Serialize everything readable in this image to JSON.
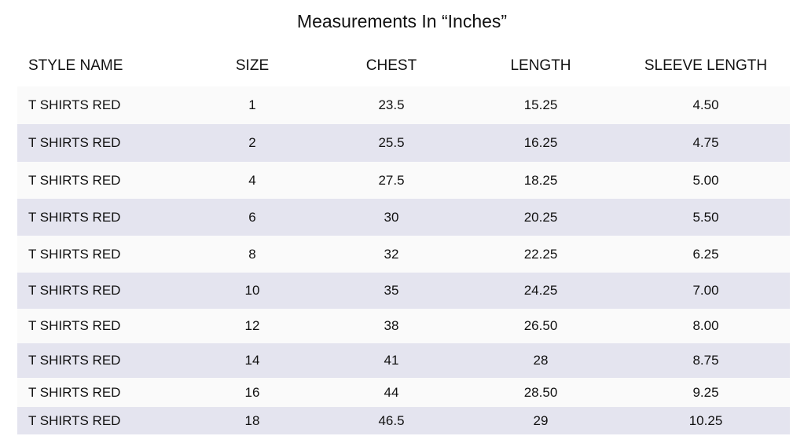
{
  "title": "Measurements In “Inches”",
  "table": {
    "headers": [
      "STYLE NAME",
      "SIZE",
      "CHEST",
      "LENGTH",
      "SLEEVE LENGTH"
    ],
    "rows": [
      [
        "T SHIRTS RED",
        "1",
        "23.5",
        "15.25",
        "4.50"
      ],
      [
        "T SHIRTS RED",
        "2",
        "25.5",
        "16.25",
        "4.75"
      ],
      [
        "T SHIRTS RED",
        "4",
        "27.5",
        "18.25",
        "5.00"
      ],
      [
        "T SHIRTS RED",
        "6",
        "30",
        "20.25",
        "5.50"
      ],
      [
        "T SHIRTS RED",
        "8",
        "32",
        "22.25",
        "6.25"
      ],
      [
        "T SHIRTS RED",
        "10",
        "35",
        "24.25",
        "7.00"
      ],
      [
        "T SHIRTS RED",
        "12",
        "38",
        "26.50",
        "8.00"
      ],
      [
        "T SHIRTS RED",
        "14",
        "41",
        "28",
        "8.75"
      ],
      [
        "T SHIRTS RED",
        "16",
        "44",
        "28.50",
        "9.25"
      ],
      [
        "T SHIRTS RED",
        "18",
        "46.5",
        "29",
        "10.25"
      ]
    ]
  }
}
